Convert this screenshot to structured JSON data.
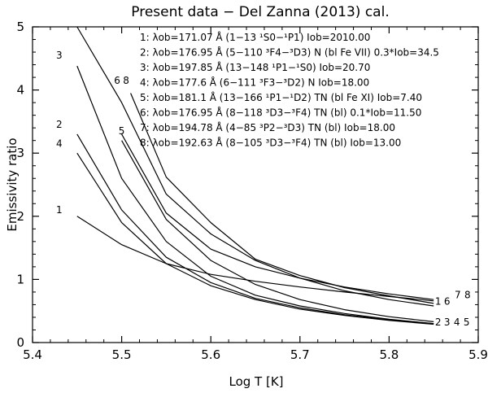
{
  "chart_data": {
    "type": "line",
    "title": "Present data − Del Zanna (2013) cal.",
    "xlabel": "Log T [K]",
    "ylabel": "Emissivity ratio",
    "xlim": [
      5.4,
      5.9
    ],
    "ylim": [
      0,
      5
    ],
    "x_ticks": [
      "5.4",
      "5.5",
      "5.6",
      "5.7",
      "5.8",
      "5.9"
    ],
    "y_ticks": [
      "0",
      "1",
      "2",
      "3",
      "4",
      "5"
    ],
    "grid": false,
    "legend_position": "top-right",
    "legend": [
      "1: λob=171.07 Å (1−13 ¹S0−¹P1)  Iob=2010.00",
      "2: λob=176.95 Å (5−110 ³F4−³D3) N (bl Fe VII) 0.3*Iob=34.5",
      "3: λob=197.85 Å (13−148 ¹P1−¹S0)  Iob=20.70",
      "4: λob=177.6 Å (6−111 ³F3−³D2) N  Iob=18.00",
      "5: λob=181.1 Å (13−166 ¹P1−¹D2) TN (bl Fe XI) Iob=7.40",
      "6: λob=176.95 Å (8−118 ³D3−³F4) TN (bl) 0.1*Iob=11.50",
      "7: λob=194.78 Å (4−85 ³P2−³D3) TN (bl) Iob=18.00",
      "8: λob=192.63 Å (8−105 ³D3−³F4) TN (bl) Iob=13.00"
    ],
    "series": [
      {
        "label": "1",
        "x": [
          5.45,
          5.5,
          5.55,
          5.6,
          5.65,
          5.7,
          5.75,
          5.8,
          5.85
        ],
        "y": [
          2.0,
          1.55,
          1.25,
          1.08,
          0.97,
          0.88,
          0.8,
          0.73,
          0.66
        ]
      },
      {
        "label": "2",
        "x": [
          5.45,
          5.5,
          5.55,
          5.6,
          5.65,
          5.7,
          5.75,
          5.8,
          5.85
        ],
        "y": [
          3.3,
          2.1,
          1.35,
          0.95,
          0.7,
          0.55,
          0.44,
          0.36,
          0.3
        ]
      },
      {
        "label": "3",
        "x": [
          5.45,
          5.5,
          5.55,
          5.6,
          5.65,
          5.7,
          5.75,
          5.8,
          5.85
        ],
        "y": [
          4.38,
          2.6,
          1.6,
          1.05,
          0.75,
          0.58,
          0.46,
          0.37,
          0.3
        ]
      },
      {
        "label": "4",
        "x": [
          5.45,
          5.5,
          5.55,
          5.6,
          5.65,
          5.7,
          5.75,
          5.8,
          5.85
        ],
        "y": [
          3.0,
          1.9,
          1.25,
          0.9,
          0.68,
          0.53,
          0.43,
          0.35,
          0.29
        ]
      },
      {
        "label": "5",
        "x": [
          5.5,
          5.55,
          5.6,
          5.65,
          5.7,
          5.75,
          5.8,
          5.85
        ],
        "y": [
          3.2,
          1.95,
          1.3,
          0.92,
          0.68,
          0.52,
          0.41,
          0.33
        ]
      },
      {
        "label": "6",
        "x": [
          5.45,
          5.5,
          5.55,
          5.6,
          5.65,
          5.7,
          5.75,
          5.8,
          5.85
        ],
        "y": [
          5.0,
          3.8,
          2.35,
          1.72,
          1.3,
          1.02,
          0.82,
          0.68,
          0.58
        ]
      },
      {
        "label": "7",
        "x": [
          5.5,
          5.55,
          5.6,
          5.65,
          5.7,
          5.75,
          5.8,
          5.85
        ],
        "y": [
          3.3,
          2.05,
          1.48,
          1.2,
          1.02,
          0.88,
          0.77,
          0.68
        ]
      },
      {
        "label": "8",
        "x": [
          5.51,
          5.55,
          5.6,
          5.65,
          5.7,
          5.75,
          5.8,
          5.85
        ],
        "y": [
          3.95,
          2.62,
          1.9,
          1.32,
          1.06,
          0.87,
          0.74,
          0.62
        ]
      }
    ],
    "line_tags": [
      {
        "text": "3",
        "x": 5.43,
        "y": 4.5
      },
      {
        "text": "6",
        "x": 5.495,
        "y": 4.1
      },
      {
        "text": "8",
        "x": 5.505,
        "y": 4.1
      },
      {
        "text": "5",
        "x": 5.5,
        "y": 3.3
      },
      {
        "text": "2",
        "x": 5.43,
        "y": 3.4
      },
      {
        "text": "4",
        "x": 5.43,
        "y": 3.1
      },
      {
        "text": "1",
        "x": 5.43,
        "y": 2.05
      },
      {
        "text": "1",
        "x": 5.855,
        "y": 0.6
      },
      {
        "text": "6",
        "x": 5.865,
        "y": 0.6
      },
      {
        "text": "7",
        "x": 5.877,
        "y": 0.7
      },
      {
        "text": "8",
        "x": 5.888,
        "y": 0.7
      },
      {
        "text": "2",
        "x": 5.855,
        "y": 0.27
      },
      {
        "text": "3",
        "x": 5.865,
        "y": 0.27
      },
      {
        "text": "4",
        "x": 5.876,
        "y": 0.27
      },
      {
        "text": "5",
        "x": 5.887,
        "y": 0.27
      }
    ]
  }
}
